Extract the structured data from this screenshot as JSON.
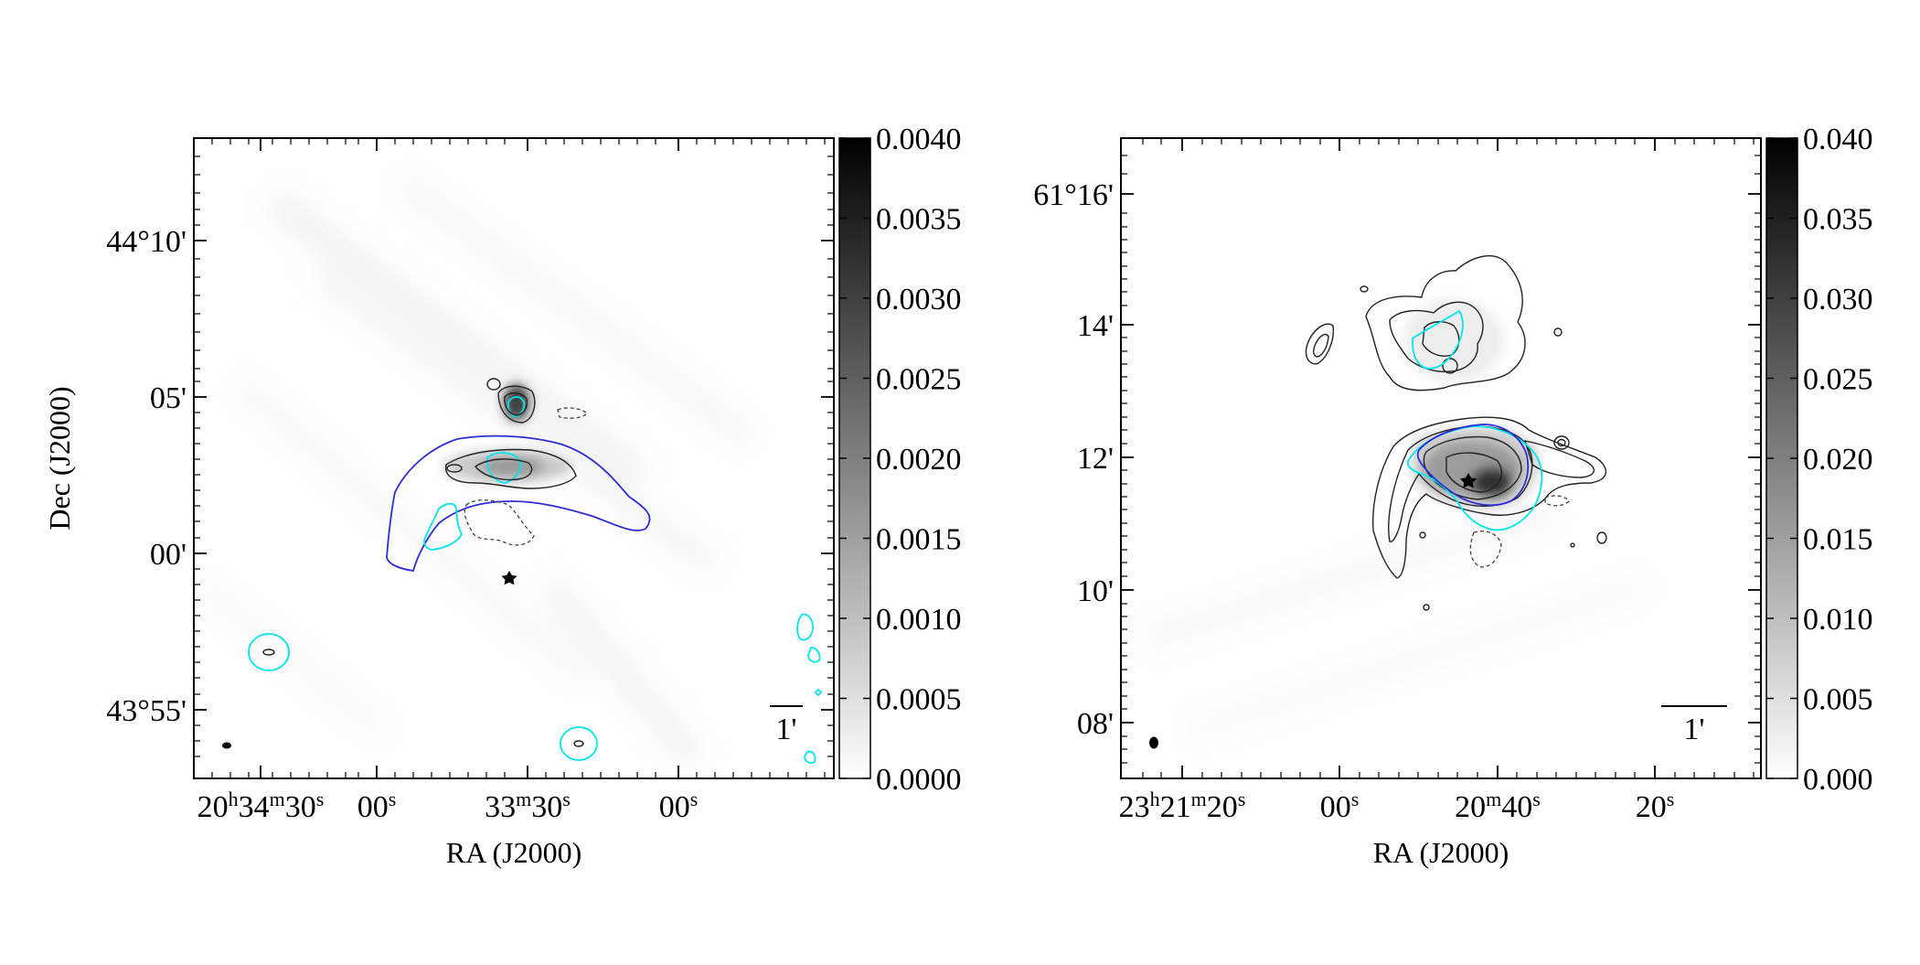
{
  "chart_data": [
    {
      "type": "heatmap",
      "panel": "left",
      "xlabel": "RA (J2000)",
      "ylabel": "Dec (J2000)",
      "x_ticks": [
        {
          "pre": "20",
          "s1": "h",
          "mid": "34",
          "s2": "m",
          "post": "30",
          "s3": "s"
        },
        {
          "post": "00",
          "s3": "s"
        },
        {
          "mid": "33",
          "s2": "m",
          "post": "30",
          "s3": "s"
        },
        {
          "post": "00",
          "s3": "s"
        }
      ],
      "y_ticks": [
        "44°10'",
        "05'",
        "00'",
        "43°55'"
      ],
      "colorbar": {
        "ticks": [
          "0.0040",
          "0.0035",
          "0.0030",
          "0.0025",
          "0.0020",
          "0.0015",
          "0.0010",
          "0.0005",
          "0.0000"
        ],
        "range": [
          0.0,
          0.004
        ],
        "colormap": "gray_r"
      },
      "scalebar_label": "1'",
      "contour_colors": {
        "image": "#000000",
        "cyan": "#00e5ee",
        "blue": "#2d2dd6"
      },
      "markers": [
        "star"
      ]
    },
    {
      "type": "heatmap",
      "panel": "right",
      "xlabel": "RA (J2000)",
      "ylabel": "",
      "x_ticks": [
        {
          "pre": "23",
          "s1": "h",
          "mid": "21",
          "s2": "m",
          "post": "20",
          "s3": "s"
        },
        {
          "post": "00",
          "s3": "s"
        },
        {
          "mid": "20",
          "s2": "m",
          "post": "40",
          "s3": "s"
        },
        {
          "post": "20",
          "s3": "s"
        }
      ],
      "y_ticks": [
        "61°16'",
        "14'",
        "12'",
        "10'",
        "08'"
      ],
      "colorbar": {
        "ticks": [
          "0.040",
          "0.035",
          "0.030",
          "0.025",
          "0.020",
          "0.015",
          "0.010",
          "0.005",
          "0.000"
        ],
        "range": [
          0.0,
          0.04
        ],
        "colormap": "gray_r"
      },
      "scalebar_label": "1'",
      "contour_colors": {
        "image": "#000000",
        "cyan": "#00e5ee",
        "blue": "#2d2dd6"
      },
      "markers": [
        "star"
      ]
    }
  ]
}
